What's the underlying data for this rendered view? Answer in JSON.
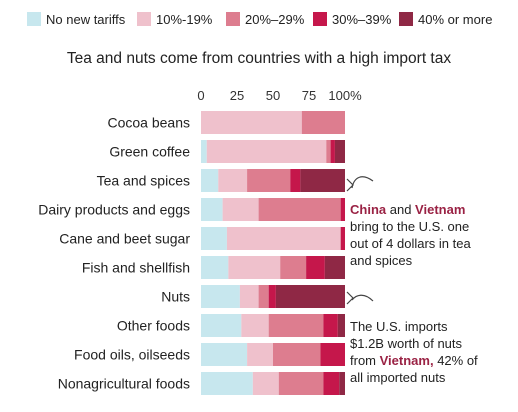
{
  "legend": [
    {
      "label": "No new tariffs",
      "color": "#c7e7ee"
    },
    {
      "label": "10%-19%",
      "color": "#efc1cc"
    },
    {
      "label": "20%–29%",
      "color": "#dd7d8f"
    },
    {
      "label": "30%–39%",
      "color": "#c5174b"
    },
    {
      "label": "40% or more",
      "color": "#8f2845"
    }
  ],
  "title": "Tea and nuts come from countries with a high import tax",
  "annotations": {
    "tea": {
      "part1": "China",
      "part2": " and ",
      "part3": "Vietnam",
      "part4": " bring to the U.S. one out of 4 dollars in tea and spices"
    },
    "nuts": {
      "part1": "The U.S. imports $1.2B worth of nuts from ",
      "part2": "Vietnam,",
      "part3": " 42% of all imported nuts"
    }
  },
  "chart_data": {
    "type": "bar",
    "orientation": "horizontal",
    "stacked": true,
    "title": "Tea and nuts come from countries with a high import tax",
    "x_ticks": [
      "0",
      "25",
      "50",
      "75",
      "100%"
    ],
    "xlim": [
      0,
      100
    ],
    "categories": [
      "Cocoa beans",
      "Green coffee",
      "Tea and spices",
      "Dairy products and eggs",
      "Cane and beet sugar",
      "Fish and shellfish",
      "Nuts",
      "Other foods",
      "Food oils, oilseeds",
      "Nonagricultural foods"
    ],
    "series": [
      {
        "name": "No new tariffs",
        "values": [
          0,
          4,
          12,
          15,
          18,
          19,
          27,
          28,
          32,
          36
        ]
      },
      {
        "name": "10%-19%",
        "values": [
          70,
          83,
          20,
          25,
          79,
          36,
          13,
          19,
          18,
          18
        ]
      },
      {
        "name": "20%–29%",
        "values": [
          30,
          3,
          30,
          57,
          0,
          18,
          7,
          38,
          33,
          31
        ]
      },
      {
        "name": "30%–39%",
        "values": [
          0,
          3,
          7,
          3,
          3,
          13,
          5,
          10,
          17,
          11
        ]
      },
      {
        "name": "40% or more",
        "values": [
          0,
          7,
          31,
          0,
          0,
          14,
          48,
          5,
          0,
          4
        ]
      }
    ]
  }
}
